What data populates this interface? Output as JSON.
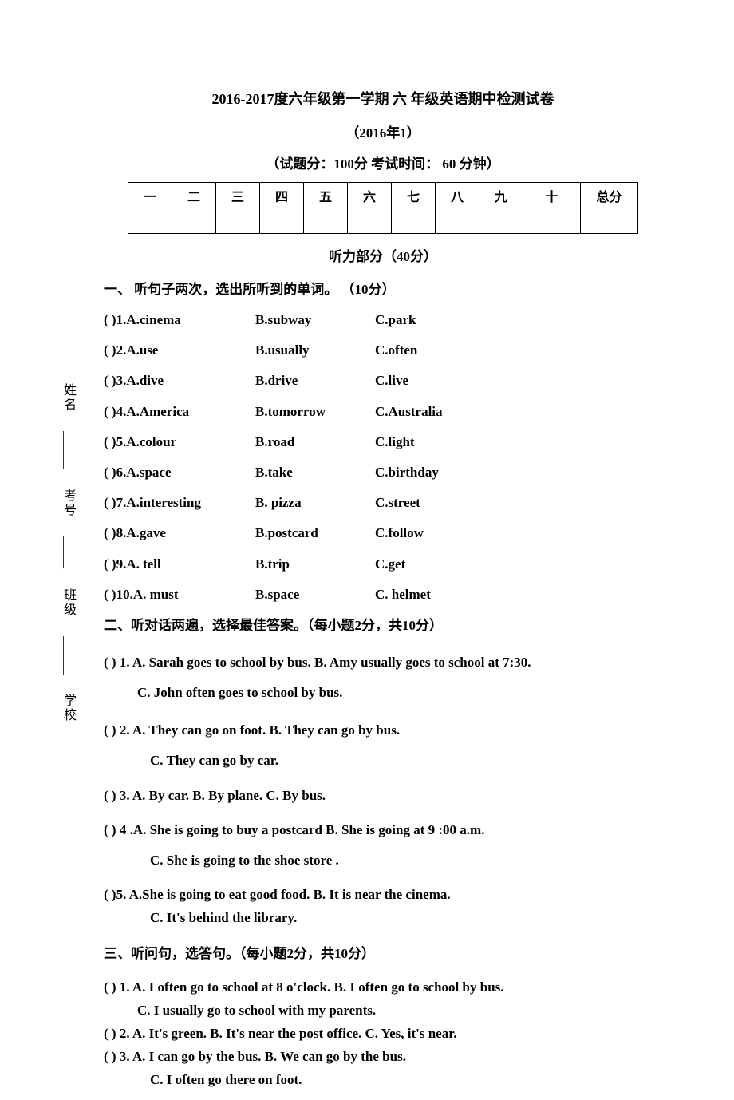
{
  "sidebar": {
    "items": [
      {
        "label": "姓名",
        "line": "______"
      },
      {
        "label": "",
        "line": "______"
      },
      {
        "label": "考号",
        "line": "______"
      },
      {
        "label": "班级",
        "line": "_____"
      },
      {
        "label": "学校",
        "line": "______"
      }
    ]
  },
  "header": {
    "title_prefix": "2016-2017度六年级第一学期",
    "title_underline": " 六 ",
    "title_suffix": "年级英语期中检测试卷",
    "subtitle": "（2016年1）",
    "score_info": "（试题分：100分  考试时间：  60 分钟）"
  },
  "score_table": {
    "headers": [
      "一",
      "二",
      "三",
      "四",
      "五",
      "六",
      "七",
      "八",
      "九",
      "十",
      "总分"
    ]
  },
  "listening_header": "听力部分（40分）",
  "section1": {
    "title": "一、   听句子两次，选出所听到的单词。 （10分）",
    "questions": [
      {
        "num": "1",
        "a": "A.cinema",
        "b": "B.subway",
        "c": "C.park"
      },
      {
        "num": "2",
        "a": "A.use",
        "b": "B.usually",
        "c": "C.often"
      },
      {
        "num": "3",
        "a": "A.dive",
        "b": "B.drive",
        "c": "C.live"
      },
      {
        "num": "4",
        "a": "A.America",
        "b": "B.tomorrow",
        "c": "C.Australia"
      },
      {
        "num": "5",
        "a": "A.colour",
        "b": "B.road",
        "c": "C.light"
      },
      {
        "num": "6",
        "a": "A.space",
        "b": "B.take",
        "c": "C.birthday"
      },
      {
        "num": "7",
        "a": "A.interesting",
        "b": "B. pizza",
        "c": "C.street"
      },
      {
        "num": "8",
        "a": "A.gave",
        "b": "B.postcard",
        "c": "C.follow"
      },
      {
        "num": "9",
        "a": "A. tell",
        "b": "B.trip",
        "c": "C.get"
      },
      {
        "num": "10",
        "a": "A. must",
        "b": "B.space",
        "c": "C. helmet"
      }
    ]
  },
  "section2": {
    "title": "二、听对话两遍，选择最佳答案。（每小题2分，共10分）",
    "q1": {
      "line1": "(      ) 1. A. Sarah goes to school by bus.   B. Amy usually goes to school at 7:30.",
      "line2": "C. John often goes to school by bus."
    },
    "q2": {
      "line1": "(      ) 2. A. They can go  on foot.    B. They can go by bus.",
      "line2": "C. They can go by car."
    },
    "q3": "(      ) 3. A. By car.      B. By plane.      C. By bus.",
    "q4": {
      "line1": "(      ) 4 .A.  She is going to buy a postcard   B. She is going at 9 :00 a.m.",
      "line2": "C. She is going to the shoe store ."
    },
    "q5": {
      "line1": "(      )5. A.She is going to eat good food.    B. It is near the cinema.",
      "line2": "C. It's behind the library."
    }
  },
  "section3": {
    "title": "三、听问句，选答句。（每小题2分，共10分）",
    "q1": {
      "line1": "(    ) 1. A. I often go to school at 8 o'clock.   B. I often go to school by bus.",
      "line2": "C. I usually go to school with my parents."
    },
    "q2": "(    ) 2. A. It's green.  B. It's  near the post office.   C. Yes, it's near.",
    "q3": {
      "line1": "(    ) 3. A. I can go by the bus.   B. We can go by the bus.",
      "line2": "C. I often go there on foot."
    }
  }
}
